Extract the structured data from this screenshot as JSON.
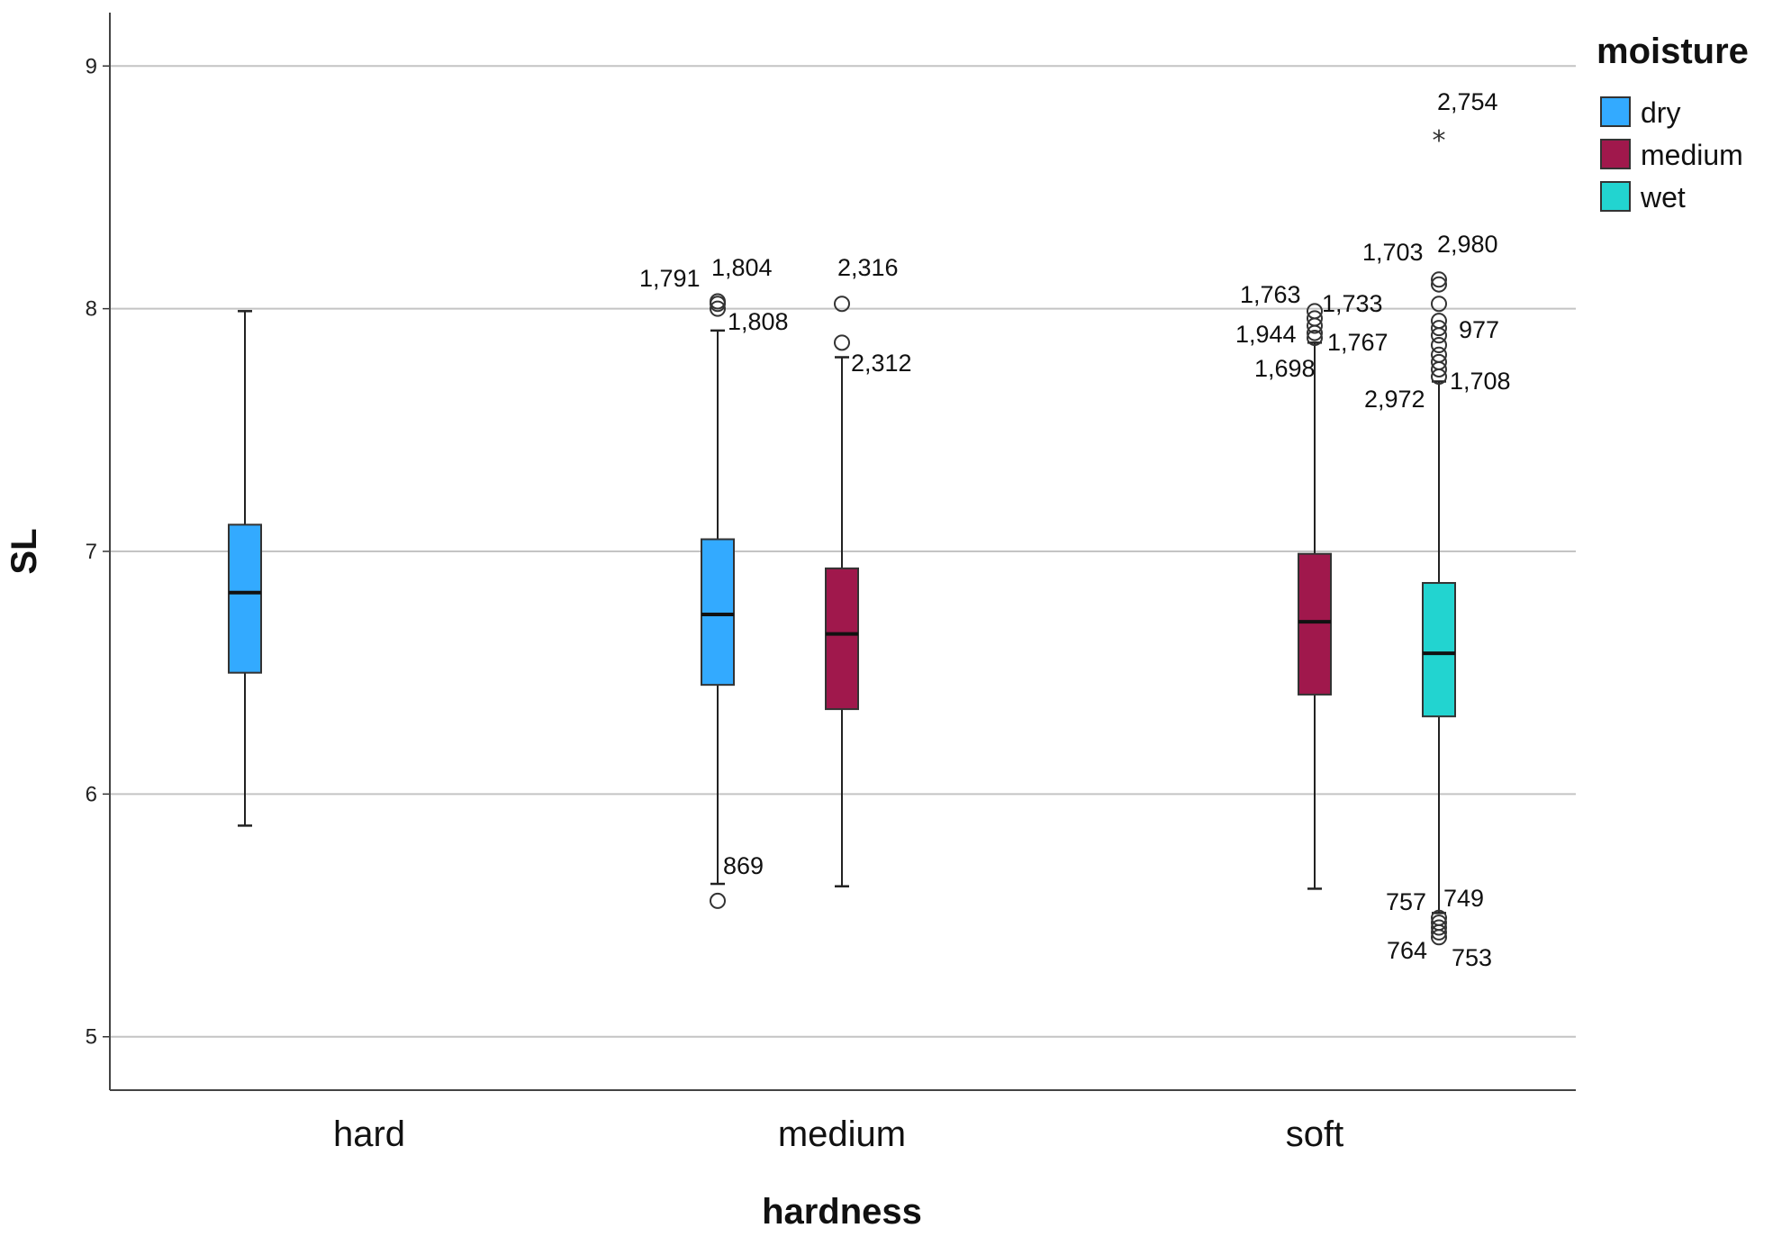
{
  "chart_data": {
    "type": "boxplot",
    "title": "",
    "xlabel": "hardness",
    "ylabel": "SL",
    "ylim": [
      4.78,
      9.22
    ],
    "yticks": [
      5,
      6,
      7,
      8,
      9
    ],
    "grid": "horizontal",
    "legend_position": "top-right",
    "legend_title": "moisture",
    "categories": [
      "hard",
      "medium",
      "soft"
    ],
    "series": [
      {
        "name": "dry",
        "color": "#33aaff"
      },
      {
        "name": "medium",
        "color": "#a0184c"
      },
      {
        "name": "wet",
        "color": "#22d4d0"
      }
    ],
    "boxes": [
      {
        "category": "hard",
        "series": "dry",
        "whisker_low": 5.87,
        "q1": 6.5,
        "median": 6.83,
        "q3": 7.11,
        "whisker_high": 7.99,
        "outliers": []
      },
      {
        "category": "medium",
        "series": "dry",
        "whisker_low": 5.63,
        "q1": 6.45,
        "median": 6.74,
        "q3": 7.05,
        "whisker_high": 7.91,
        "outliers": [
          {
            "value": 8.03,
            "marker": "circle",
            "label": "1,791"
          },
          {
            "value": 8.02,
            "marker": "circle",
            "label": "1,804"
          },
          {
            "value": 8.0,
            "marker": "circle",
            "label": "1,808"
          },
          {
            "value": 5.56,
            "marker": "circle",
            "label": "869"
          }
        ]
      },
      {
        "category": "medium",
        "series": "medium",
        "whisker_low": 5.62,
        "q1": 6.35,
        "median": 6.66,
        "q3": 6.93,
        "whisker_high": 7.8,
        "outliers": [
          {
            "value": 8.02,
            "marker": "circle",
            "label": "2,316"
          },
          {
            "value": 7.86,
            "marker": "circle",
            "label": "2,312"
          }
        ]
      },
      {
        "category": "soft",
        "series": "medium",
        "whisker_low": 5.61,
        "q1": 6.41,
        "median": 6.71,
        "q3": 6.99,
        "whisker_high": 7.86,
        "outliers": [
          {
            "value": 7.99,
            "marker": "circle",
            "label": "1,763"
          },
          {
            "value": 7.96,
            "marker": "circle",
            "label": "1,733"
          },
          {
            "value": 7.93,
            "marker": "circle",
            "label": "1,944"
          },
          {
            "value": 7.9,
            "marker": "circle",
            "label": "1,767"
          },
          {
            "value": 7.88,
            "marker": "circle",
            "label": "1,698"
          }
        ]
      },
      {
        "category": "soft",
        "series": "wet",
        "whisker_low": 5.51,
        "q1": 6.32,
        "median": 6.58,
        "q3": 6.87,
        "whisker_high": 7.7,
        "outliers": [
          {
            "value": 8.7,
            "marker": "star",
            "label": "2,754"
          },
          {
            "value": 8.12,
            "marker": "circle",
            "label": "1,703"
          },
          {
            "value": 8.1,
            "marker": "circle",
            "label": "2,980"
          },
          {
            "value": 8.02,
            "marker": "circle",
            "label": ""
          },
          {
            "value": 7.95,
            "marker": "circle",
            "label": ""
          },
          {
            "value": 7.92,
            "marker": "circle",
            "label": "977"
          },
          {
            "value": 7.89,
            "marker": "circle",
            "label": ""
          },
          {
            "value": 7.85,
            "marker": "circle",
            "label": ""
          },
          {
            "value": 7.81,
            "marker": "circle",
            "label": ""
          },
          {
            "value": 7.78,
            "marker": "circle",
            "label": "2,972"
          },
          {
            "value": 7.75,
            "marker": "circle",
            "label": ""
          },
          {
            "value": 7.72,
            "marker": "circle",
            "label": "1,708"
          },
          {
            "value": 5.49,
            "marker": "circle",
            "label": "749"
          },
          {
            "value": 5.47,
            "marker": "circle",
            "label": "757"
          },
          {
            "value": 5.45,
            "marker": "circle",
            "label": ""
          },
          {
            "value": 5.43,
            "marker": "circle",
            "label": "764"
          },
          {
            "value": 5.41,
            "marker": "circle",
            "label": "753"
          }
        ]
      }
    ]
  }
}
